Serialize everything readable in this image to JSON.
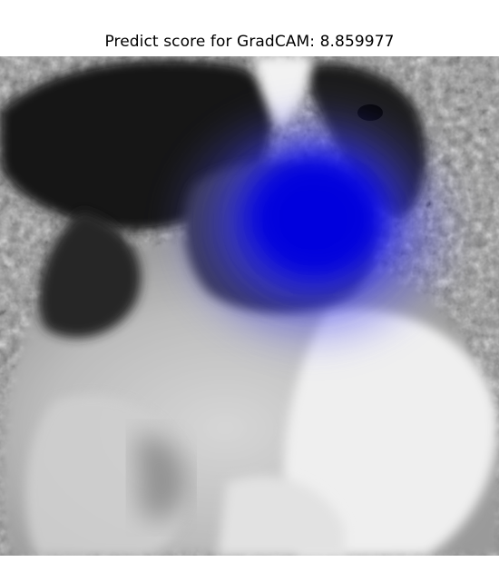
{
  "figure": {
    "title": "Predict score for GradCAM: 8.859977"
  },
  "image": {
    "subject": "grayscale puppy photo with saliency overlay",
    "overlay_color": "#0000ff",
    "colors": {
      "background_grass": "#8a8a8a",
      "dark_fur": "#1a1a1a",
      "white_fur": "#e8e8e8"
    }
  }
}
